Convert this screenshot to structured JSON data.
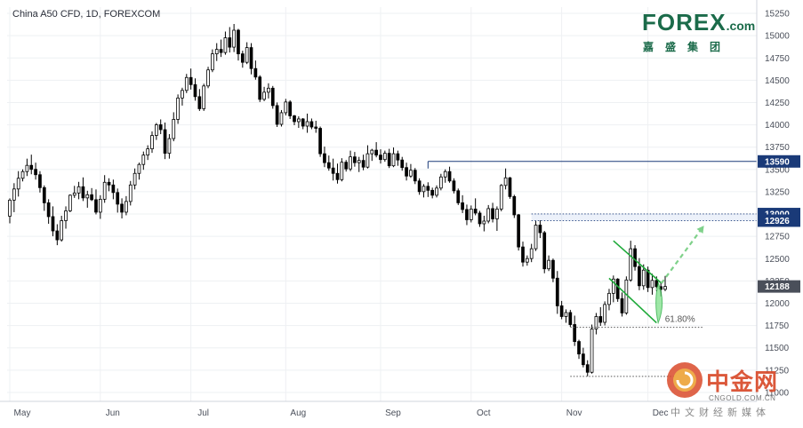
{
  "header": {
    "title": "China A50 CFD, 1D, FOREXCOM"
  },
  "logo": {
    "brand": "FOREX",
    "suffix": ".com",
    "cn": "嘉盛集团",
    "color": "#1b6b4a"
  },
  "watermark": {
    "cn": "中金网",
    "en": "CNGOLD.COM.CN",
    "tagline": "中文财经新媒体"
  },
  "chart_data": {
    "type": "candlestick",
    "title": "China A50 CFD, 1D, FOREXCOM",
    "x_months": [
      "May",
      "Jun",
      "Jul",
      "Aug",
      "Sep",
      "Oct",
      "Nov",
      "Dec"
    ],
    "y_ticks": [
      11000,
      11250,
      11500,
      11750,
      12000,
      12250,
      12500,
      12750,
      13000,
      13250,
      13500,
      13750,
      14000,
      14250,
      14500,
      14750,
      15000,
      15250
    ],
    "ylim": [
      10900,
      15320
    ],
    "grid": true,
    "last_price": 12188,
    "price_labels": [
      {
        "label": "13590",
        "value": 13590,
        "color": "#1a3a78"
      },
      {
        "label": "13000",
        "value": 13000,
        "color": "#1a3a78"
      },
      {
        "label": "12926",
        "value": 12926,
        "color": "#1a3a78"
      },
      {
        "label": "12188",
        "value": 12188,
        "color": "#4a4f5a"
      }
    ],
    "levels": [
      {
        "name": "resistance-13590",
        "value": 13590,
        "from_day": 97,
        "style": "solid",
        "color": "#1a3a78"
      },
      {
        "name": "resistance-13000",
        "value": 13000,
        "from_day": 121,
        "style": "dotted",
        "color": "#1a3a78"
      },
      {
        "name": "resistance-12926",
        "value": 12926,
        "from_day": 121,
        "style": "dotted",
        "color": "#1a3a78"
      },
      {
        "name": "fib-61.8",
        "value": 11730,
        "from_day": 130,
        "to_day": 161,
        "style": "dotted",
        "color": "#555555",
        "label": "61.80%"
      },
      {
        "name": "low-level",
        "value": 11180,
        "from_day": 130,
        "to_day": 154,
        "style": "dotted",
        "color": "#555555"
      }
    ],
    "channel": {
      "upper": [
        [
          140,
          12700
        ],
        [
          151,
          12230
        ]
      ],
      "lower": [
        [
          139,
          12280
        ],
        [
          150,
          11780
        ]
      ],
      "color": "#1faa3a"
    },
    "projection": {
      "from": [
        150,
        12150
      ],
      "to": [
        161,
        12870
      ],
      "color": "#7fd18a"
    },
    "candles": [
      [
        12976,
        13176,
        12896,
        13156
      ],
      [
        13156,
        13346,
        13021,
        13281
      ],
      [
        13281,
        13481,
        13196,
        13401
      ],
      [
        13401,
        13501,
        13366,
        13476
      ],
      [
        13476,
        13621,
        13426,
        13546
      ],
      [
        13546,
        13666,
        13446,
        13501
      ],
      [
        13501,
        13576,
        13386,
        13441
      ],
      [
        13441,
        13481,
        13241,
        13296
      ],
      [
        13296,
        13321,
        13036,
        13126
      ],
      [
        13126,
        13166,
        12891,
        12971
      ],
      [
        12971,
        13086,
        12751,
        12811
      ],
      [
        12811,
        12886,
        12651,
        12711
      ],
      [
        12711,
        12981,
        12691,
        12926
      ],
      [
        12926,
        13086,
        12836,
        13036
      ],
      [
        13036,
        13221,
        13021,
        13211
      ],
      [
        13211,
        13316,
        13181,
        13236
      ],
      [
        13236,
        13361,
        13166,
        13306
      ],
      [
        13306,
        13411,
        13146,
        13181
      ],
      [
        13181,
        13261,
        13071,
        13216
      ],
      [
        13216,
        13291,
        13146,
        13161
      ],
      [
        13161,
        13276,
        12996,
        13021
      ],
      [
        13021,
        13211,
        12946,
        13166
      ],
      [
        13166,
        13436,
        13126,
        13356
      ],
      [
        13356,
        13401,
        13256,
        13326
      ],
      [
        13326,
        13386,
        13166,
        13241
      ],
      [
        13241,
        13286,
        13016,
        13111
      ],
      [
        13111,
        13176,
        12951,
        13021
      ],
      [
        13021,
        13201,
        12986,
        13141
      ],
      [
        13141,
        13371,
        13096,
        13326
      ],
      [
        13326,
        13511,
        13276,
        13456
      ],
      [
        13456,
        13576,
        13386,
        13556
      ],
      [
        13556,
        13701,
        13496,
        13661
      ],
      [
        13661,
        13771,
        13606,
        13731
      ],
      [
        13731,
        13926,
        13686,
        13881
      ],
      [
        13881,
        14021,
        13831,
        14001
      ],
      [
        14001,
        14061,
        13896,
        13946
      ],
      [
        13946,
        14026,
        13616,
        13681
      ],
      [
        13681,
        13896,
        13621,
        13846
      ],
      [
        13846,
        14141,
        13816,
        14061
      ],
      [
        14061,
        14341,
        14011,
        14301
      ],
      [
        14301,
        14416,
        14216,
        14386
      ],
      [
        14386,
        14571,
        14356,
        14531
      ],
      [
        14531,
        14631,
        14396,
        14451
      ],
      [
        14451,
        14521,
        14271,
        14316
      ],
      [
        14316,
        14401,
        14156,
        14181
      ],
      [
        14181,
        14461,
        14156,
        14436
      ],
      [
        14436,
        14651,
        14411,
        14616
      ],
      [
        14616,
        14846,
        14591,
        14796
      ],
      [
        14796,
        14916,
        14716,
        14846
      ],
      [
        14846,
        14956,
        14761,
        14811
      ],
      [
        14811,
        15046,
        14786,
        14976
      ],
      [
        14976,
        15096,
        14811,
        14871
      ],
      [
        14871,
        15131,
        14816,
        15061
      ],
      [
        15061,
        15076,
        14721,
        14796
      ],
      [
        14796,
        14831,
        14641,
        14701
      ],
      [
        14701,
        14926,
        14681,
        14866
      ],
      [
        14866,
        14916,
        14566,
        14631
      ],
      [
        14631,
        14721,
        14506,
        14536
      ],
      [
        14536,
        14556,
        14256,
        14286
      ],
      [
        14286,
        14426,
        14266,
        14366
      ],
      [
        14366,
        14466,
        14296,
        14411
      ],
      [
        14411,
        14436,
        14181,
        14216
      ],
      [
        14216,
        14251,
        13976,
        14006
      ],
      [
        14006,
        14166,
        13981,
        14136
      ],
      [
        14136,
        14291,
        14106,
        14256
      ],
      [
        14256,
        14276,
        14066,
        14101
      ],
      [
        14101,
        14111,
        13996,
        14036
      ],
      [
        14036,
        14096,
        13966,
        14066
      ],
      [
        14066,
        14076,
        13951,
        13986
      ],
      [
        13986,
        14126,
        13911,
        14036
      ],
      [
        14036,
        14071,
        13951,
        13976
      ],
      [
        13976,
        14046,
        13911,
        13961
      ],
      [
        13961,
        13981,
        13641,
        13676
      ],
      [
        13676,
        13756,
        13526,
        13576
      ],
      [
        13576,
        13656,
        13486,
        13516
      ],
      [
        13516,
        13621,
        13376,
        13456
      ],
      [
        13456,
        13566,
        13341,
        13386
      ],
      [
        13386,
        13626,
        13366,
        13581
      ],
      [
        13581,
        13606,
        13476,
        13506
      ],
      [
        13506,
        13711,
        13481,
        13641
      ],
      [
        13641,
        13696,
        13531,
        13576
      ],
      [
        13576,
        13641,
        13471,
        13601
      ],
      [
        13601,
        13666,
        13491,
        13526
      ],
      [
        13526,
        13771,
        13511,
        13676
      ],
      [
        13676,
        13731,
        13596,
        13716
      ],
      [
        13716,
        13806,
        13636,
        13661
      ],
      [
        13661,
        13726,
        13566,
        13611
      ],
      [
        13611,
        13711,
        13586,
        13681
      ],
      [
        13681,
        13731,
        13516,
        13541
      ],
      [
        13541,
        13746,
        13526,
        13676
      ],
      [
        13676,
        13711,
        13541,
        13606
      ],
      [
        13606,
        13641,
        13486,
        13521
      ],
      [
        13521,
        13576,
        13376,
        13426
      ],
      [
        13426,
        13561,
        13406,
        13491
      ],
      [
        13491,
        13516,
        13336,
        13371
      ],
      [
        13371,
        13401,
        13216,
        13251
      ],
      [
        13251,
        13336,
        13186,
        13311
      ],
      [
        13311,
        13356,
        13191,
        13266
      ],
      [
        13266,
        13296,
        13176,
        13211
      ],
      [
        13211,
        13321,
        13186,
        13291
      ],
      [
        13291,
        13451,
        13266,
        13416
      ],
      [
        13416,
        13501,
        13351,
        13476
      ],
      [
        13476,
        13531,
        13351,
        13371
      ],
      [
        13371,
        13401,
        13231,
        13261
      ],
      [
        13261,
        13286,
        13101,
        13126
      ],
      [
        13126,
        13211,
        13011,
        13051
      ],
      [
        13051,
        13106,
        12876,
        12936
      ],
      [
        12936,
        13096,
        12906,
        13056
      ],
      [
        13056,
        13176,
        12986,
        13011
      ],
      [
        13011,
        13036,
        12856,
        12891
      ],
      [
        12891,
        12981,
        12806,
        12921
      ],
      [
        12921,
        13101,
        12896,
        13061
      ],
      [
        13061,
        13126,
        12906,
        12946
      ],
      [
        12946,
        13086,
        12811,
        13056
      ],
      [
        13056,
        13336,
        13031,
        13321
      ],
      [
        13321,
        13511,
        13276,
        13406
      ],
      [
        13406,
        13416,
        13171,
        13196
      ],
      [
        13196,
        13216,
        12956,
        12991
      ],
      [
        12991,
        13001,
        12591,
        12631
      ],
      [
        12631,
        12691,
        12411,
        12461
      ],
      [
        12461,
        12536,
        12421,
        12501
      ],
      [
        12501,
        12666,
        12461,
        12611
      ],
      [
        12611,
        12926,
        12586,
        12876
      ],
      [
        12876,
        12931,
        12731,
        12791
      ],
      [
        12791,
        12811,
        12336,
        12386
      ],
      [
        12386,
        12536,
        12361,
        12481
      ],
      [
        12481,
        12501,
        12236,
        12281
      ],
      [
        12281,
        12361,
        11881,
        11971
      ],
      [
        11971,
        12026,
        11821,
        11851
      ],
      [
        11851,
        11931,
        11781,
        11896
      ],
      [
        11896,
        11926,
        11736,
        11761
      ],
      [
        11761,
        11861,
        11521,
        11571
      ],
      [
        11571,
        11591,
        11376,
        11431
      ],
      [
        11431,
        11501,
        11281,
        11311
      ],
      [
        11311,
        11361,
        11181,
        11226
      ],
      [
        11226,
        11761,
        11211,
        11711
      ],
      [
        11711,
        11891,
        11651,
        11851
      ],
      [
        11851,
        11956,
        11746,
        11786
      ],
      [
        11786,
        12021,
        11751,
        11986
      ],
      [
        11986,
        12161,
        11921,
        12111
      ],
      [
        12111,
        12311,
        12011,
        12271
      ],
      [
        12271,
        12281,
        12016,
        12051
      ],
      [
        12051,
        12121,
        11851,
        11891
      ],
      [
        11891,
        12301,
        11871,
        12261
      ],
      [
        12261,
        12701,
        12241,
        12611
      ],
      [
        12611,
        12651,
        12366,
        12411
      ],
      [
        12411,
        12506,
        12146,
        12196
      ],
      [
        12196,
        12436,
        12151,
        12371
      ],
      [
        12371,
        12411,
        12126,
        12176
      ],
      [
        12176,
        12331,
        12096,
        12256
      ],
      [
        12256,
        12301,
        12136,
        12186
      ],
      [
        12186,
        12236,
        12076,
        12156
      ],
      [
        12156,
        12306,
        12136,
        12188
      ]
    ],
    "month_starts": [
      0,
      21,
      42,
      64,
      86,
      107,
      128,
      148
    ]
  }
}
